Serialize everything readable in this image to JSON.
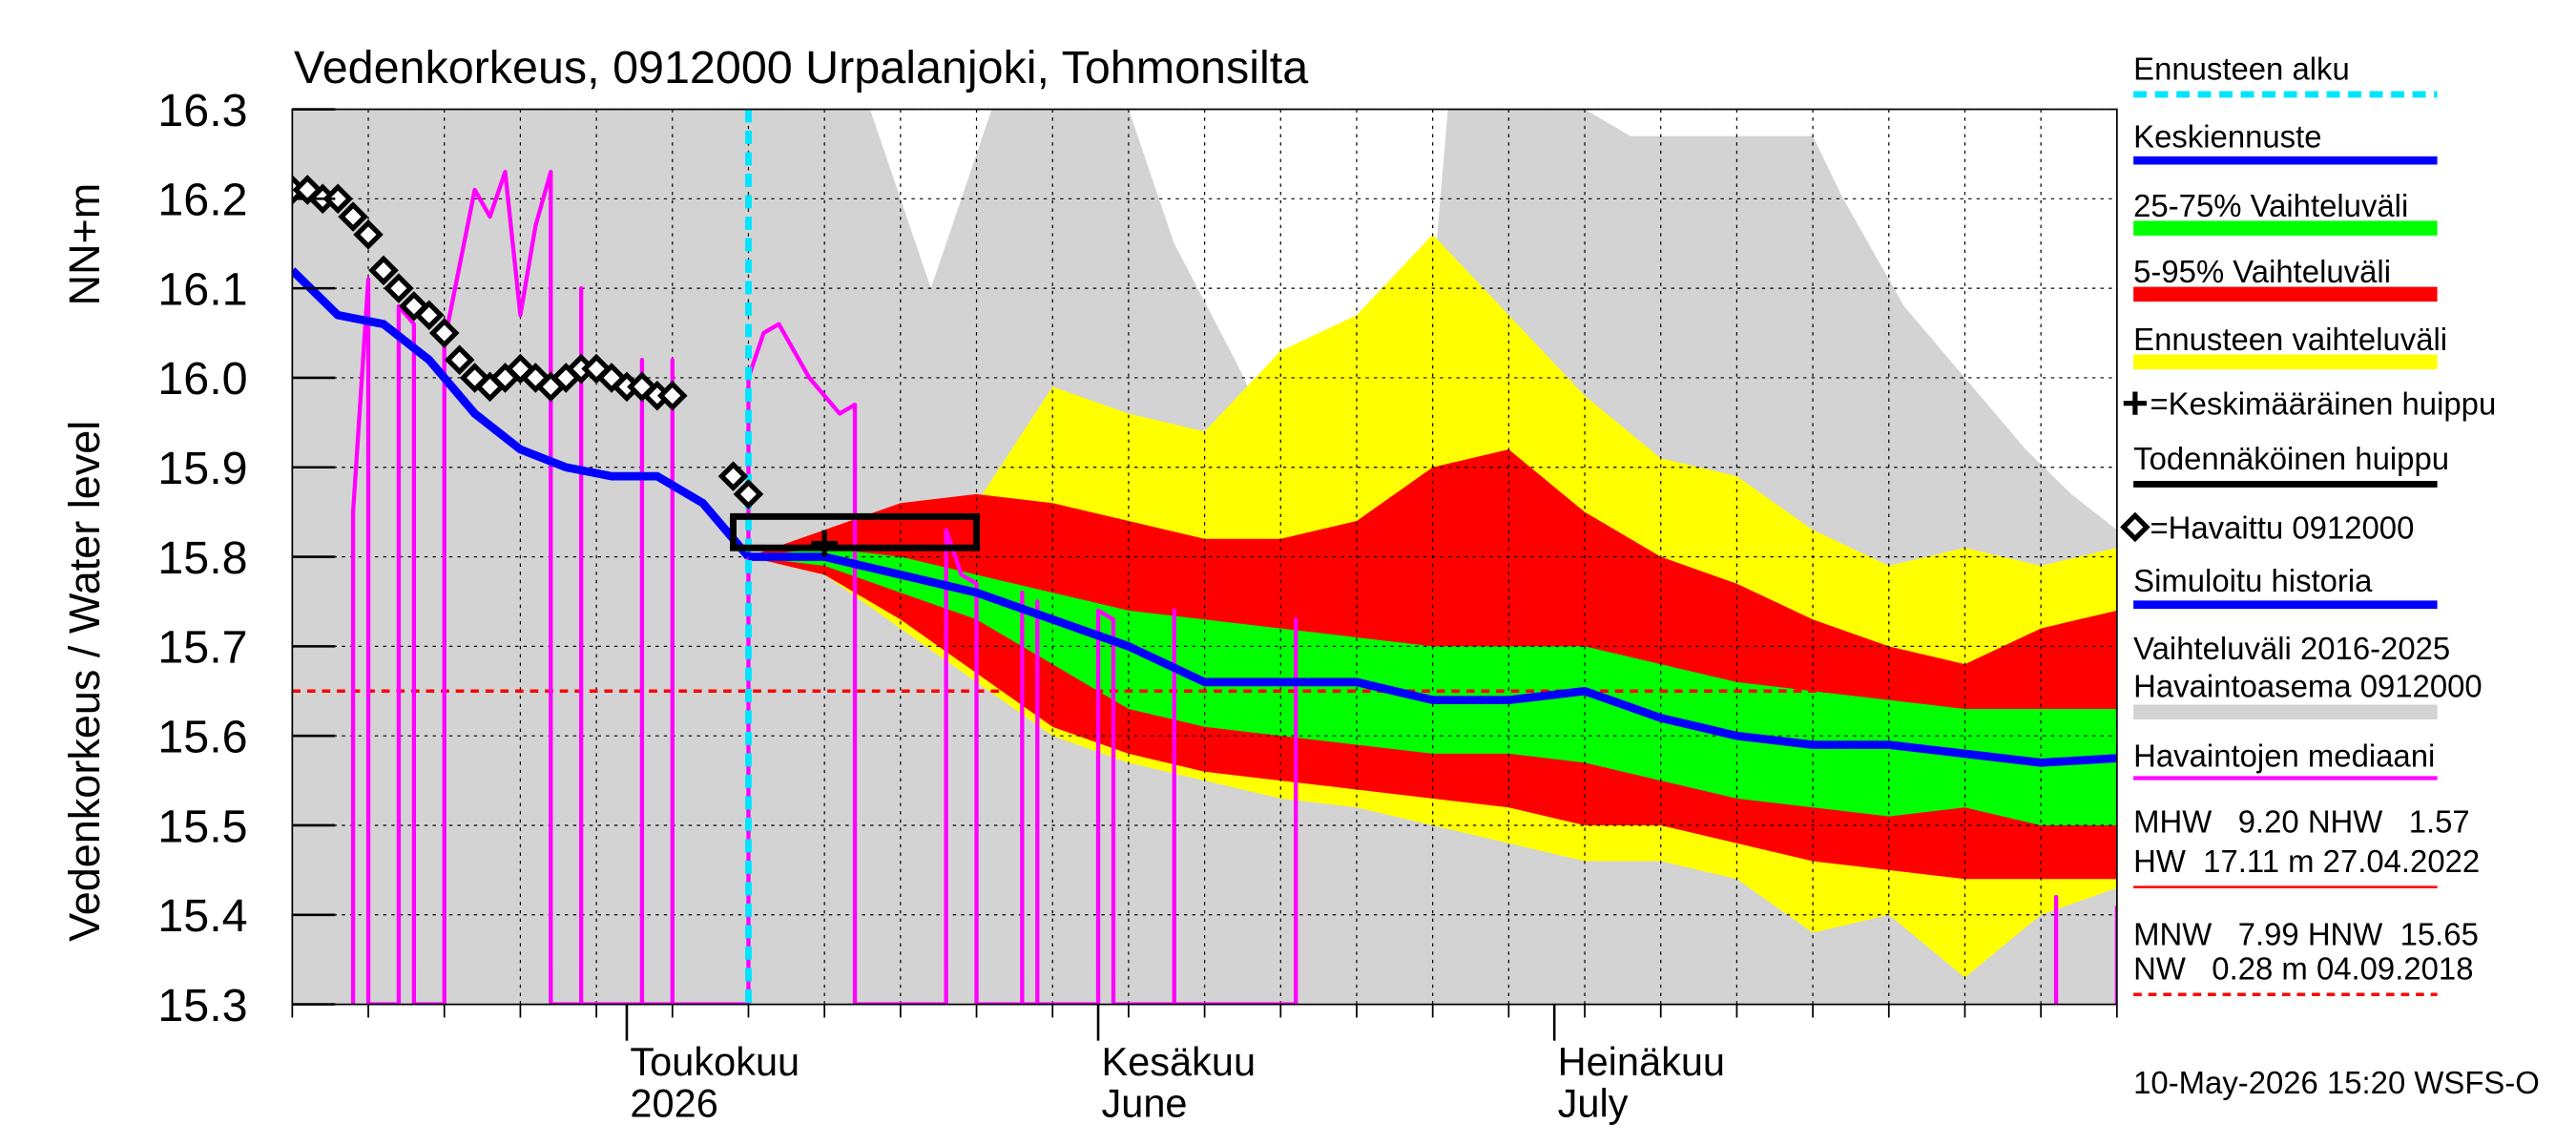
{
  "chart_data": {
    "type": "forecast",
    "title": "Vedenkorkeus, 0912000 Urpalanjoki, Tohmonsilta",
    "y_label": "Vedenkorkeus / Water level",
    "y_unit": "NN+m",
    "xlim": [
      "2026-04-09",
      "2026-08-07"
    ],
    "ylim": [
      15.3,
      16.3
    ],
    "yticks": [
      15.3,
      15.4,
      15.5,
      15.6,
      15.7,
      15.8,
      15.9,
      {
        "value": 16,
        "label": "16.0"
      },
      16.1,
      16.2,
      16.3
    ],
    "xticks": [
      {
        "value": "2026-05-01",
        "label": "Toukokuu",
        "label2": "2026"
      },
      {
        "value": "2026-06-01",
        "label": "Kesäkuu",
        "label2": "June"
      },
      {
        "value": "2026-07-01",
        "label": "Heinäkuu",
        "label2": "July"
      }
    ],
    "minor_xticks": [
      "2026-04-09",
      "2026-04-14",
      "2026-04-19",
      "2026-04-24",
      "2026-04-29",
      "2026-05-04",
      "2026-05-09",
      "2026-05-14",
      "2026-05-19",
      "2026-05-24",
      "2026-05-29",
      "2026-06-03",
      "2026-06-08",
      "2026-06-13",
      "2026-06-18",
      "2026-06-23",
      "2026-06-28",
      "2026-07-03",
      "2026-07-08",
      "2026-07-13",
      "2026-07-18",
      "2026-07-23",
      "2026-07-28",
      "2026-08-02",
      "2026-08-07"
    ],
    "grid": true,
    "forecast_start": {
      "name": "Ennusteen alku",
      "x": "2026-05-09",
      "color": "#00e5ff"
    },
    "bands": [
      {
        "name": "Vaihteluväli 2016-2025",
        "name2": "Havaintoasema 0912000",
        "color": "#d3d3d3",
        "x": [
          "2026-04-09",
          "2026-05-17",
          "2026-05-21",
          "2026-05-25",
          "2026-06-03",
          "2026-06-06",
          "2026-06-10",
          "2026-06-14",
          "2026-06-17",
          "2026-06-19",
          "2026-06-21",
          "2026-06-23",
          "2026-06-24",
          "2026-07-03",
          "2026-07-06",
          "2026-07-18",
          "2026-07-20",
          "2026-07-24",
          "2026-07-28",
          "2026-08-01",
          "2026-08-04",
          "2026-08-07"
        ],
        "low": [
          15.3,
          15.3,
          15.3,
          15.3,
          15.3,
          15.3,
          15.3,
          15.3,
          15.3,
          15.3,
          15.3,
          15.3,
          15.3,
          15.3,
          15.3,
          15.3,
          15.3,
          15.3,
          15.3,
          15.3,
          15.3,
          15.3
        ],
        "high": [
          16.3,
          16.3,
          16.1,
          16.3,
          16.3,
          16.15,
          16.02,
          15.88,
          15.81,
          15.8,
          15.88,
          16.1,
          16.3,
          16.3,
          16.27,
          16.27,
          16.2,
          16.08,
          16.0,
          15.92,
          15.87,
          15.83
        ]
      },
      {
        "name": "Ennusteen vaihteluväli",
        "color": "#ffff00",
        "x": [
          "2026-05-09",
          "2026-05-14",
          "2026-05-19",
          "2026-05-24",
          "2026-05-29",
          "2026-06-03",
          "2026-06-08",
          "2026-06-13",
          "2026-06-18",
          "2026-06-23",
          "2026-06-28",
          "2026-07-03",
          "2026-07-08",
          "2026-07-13",
          "2026-07-18",
          "2026-07-23",
          "2026-07-28",
          "2026-08-02",
          "2026-08-07"
        ],
        "low": [
          15.8,
          15.78,
          15.72,
          15.66,
          15.6,
          15.57,
          15.55,
          15.53,
          15.52,
          15.5,
          15.48,
          15.46,
          15.46,
          15.44,
          15.38,
          15.4,
          15.33,
          15.4,
          15.43
        ],
        "high": [
          15.8,
          15.82,
          15.83,
          15.86,
          15.99,
          15.96,
          15.94,
          16.03,
          16.07,
          16.16,
          16.07,
          15.98,
          15.91,
          15.89,
          15.83,
          15.79,
          15.81,
          15.79,
          15.81
        ]
      },
      {
        "name": "5-95% Vaihteluväli",
        "color": "#ff0000",
        "x": [
          "2026-05-09",
          "2026-05-14",
          "2026-05-19",
          "2026-05-24",
          "2026-05-29",
          "2026-06-03",
          "2026-06-08",
          "2026-06-13",
          "2026-06-18",
          "2026-06-23",
          "2026-06-28",
          "2026-07-03",
          "2026-07-08",
          "2026-07-13",
          "2026-07-18",
          "2026-07-23",
          "2026-07-28",
          "2026-08-02",
          "2026-08-07"
        ],
        "low": [
          15.8,
          15.78,
          15.73,
          15.67,
          15.61,
          15.58,
          15.56,
          15.55,
          15.54,
          15.53,
          15.52,
          15.5,
          15.5,
          15.48,
          15.46,
          15.45,
          15.44,
          15.44,
          15.44
        ],
        "high": [
          15.8,
          15.83,
          15.86,
          15.87,
          15.86,
          15.84,
          15.82,
          15.82,
          15.84,
          15.9,
          15.92,
          15.85,
          15.8,
          15.77,
          15.73,
          15.7,
          15.68,
          15.72,
          15.74
        ]
      },
      {
        "name": "25-75% Vaihteluväli",
        "color": "#00ff00",
        "x": [
          "2026-05-09",
          "2026-05-14",
          "2026-05-19",
          "2026-05-24",
          "2026-05-29",
          "2026-06-03",
          "2026-06-08",
          "2026-06-13",
          "2026-06-18",
          "2026-06-23",
          "2026-06-28",
          "2026-07-03",
          "2026-07-08",
          "2026-07-13",
          "2026-07-18",
          "2026-07-23",
          "2026-07-28",
          "2026-08-02",
          "2026-08-07"
        ],
        "low": [
          15.8,
          15.79,
          15.76,
          15.73,
          15.68,
          15.63,
          15.61,
          15.6,
          15.59,
          15.58,
          15.58,
          15.57,
          15.55,
          15.53,
          15.52,
          15.51,
          15.52,
          15.5,
          15.5
        ],
        "high": [
          15.8,
          15.81,
          15.8,
          15.78,
          15.76,
          15.74,
          15.73,
          15.72,
          15.71,
          15.7,
          15.7,
          15.7,
          15.68,
          15.66,
          15.65,
          15.64,
          15.63,
          15.63,
          15.63
        ]
      }
    ],
    "series": [
      {
        "name": "Havaintojen mediaani",
        "color": "#ff00ff",
        "width": 2.5,
        "x": [
          "2026-04-13",
          "2026-04-13",
          "2026-04-14",
          "2026-04-14",
          "2026-04-16",
          "2026-04-16",
          "2026-04-17",
          "2026-04-17",
          "2026-04-19",
          "2026-04-19",
          "2026-04-21",
          "2026-04-22",
          "2026-04-23",
          "2026-04-24",
          "2026-04-25",
          "2026-04-26",
          "2026-04-26",
          "2026-04-28",
          "2026-04-28",
          "2026-04-28",
          "2026-05-02",
          "2026-05-02",
          "2026-05-02",
          "2026-05-04",
          "2026-05-04",
          "2026-05-04",
          "2026-05-09",
          "2026-05-09",
          "2026-05-10",
          "2026-05-11",
          "2026-05-13",
          "2026-05-15",
          "2026-05-16",
          "2026-05-16",
          "2026-05-22",
          "2026-05-22",
          "2026-05-23",
          "2026-05-24",
          "2026-05-24",
          "2026-05-27",
          "2026-05-27",
          "2026-05-27",
          "2026-05-28",
          "2026-05-28",
          "2026-05-28",
          "2026-06-01",
          "2026-06-01",
          "2026-06-02",
          "2026-06-02",
          "2026-06-06",
          "2026-06-06",
          "2026-06-06",
          "2026-06-14",
          "2026-06-14",
          "2026-06-14",
          "2026-07-01",
          "2026-08-03",
          "2026-08-03",
          "2026-08-03",
          "2026-08-05",
          "2026-08-07",
          "2026-08-07"
        ],
        "values": [
          15.3,
          15.85,
          16.11,
          15.3,
          15.3,
          16.08,
          16.06,
          15.3,
          15.3,
          16.04,
          16.21,
          16.18,
          16.23,
          16.07,
          16.17,
          16.23,
          15.3,
          15.3,
          16.1,
          15.3,
          15.3,
          16.02,
          15.3,
          15.3,
          16.02,
          15.3,
          15.3,
          16.0,
          16.05,
          16.06,
          16.0,
          15.96,
          15.97,
          15.3,
          15.3,
          15.83,
          15.78,
          15.77,
          15.3,
          15.3,
          15.76,
          15.3,
          15.3,
          15.75,
          15.3,
          15.3,
          15.74,
          15.73,
          15.3,
          15.3,
          15.74,
          15.3,
          15.3,
          15.73,
          15.3,
          null,
          15.3,
          15.42,
          15.3,
          null,
          15.3,
          15.41
        ]
      },
      {
        "name": "Simuloitu historia",
        "color": "#0000ff",
        "width": 5,
        "x": [
          "2026-04-09",
          "2026-04-12",
          "2026-04-15",
          "2026-04-18",
          "2026-04-21",
          "2026-04-24",
          "2026-04-27",
          "2026-04-30",
          "2026-05-03",
          "2026-05-06",
          "2026-05-09"
        ],
        "values": [
          16.12,
          16.07,
          16.06,
          16.02,
          15.96,
          15.92,
          15.9,
          15.89,
          15.89,
          15.86,
          15.8
        ]
      },
      {
        "name": "Keskiennuste",
        "color": "#0000ff",
        "width": 5,
        "x": [
          "2026-05-09",
          "2026-05-14",
          "2026-05-19",
          "2026-05-24",
          "2026-05-29",
          "2026-06-03",
          "2026-06-08",
          "2026-06-13",
          "2026-06-18",
          "2026-06-23",
          "2026-06-28",
          "2026-07-03",
          "2026-07-08",
          "2026-07-13",
          "2026-07-18",
          "2026-07-23",
          "2026-07-28",
          "2026-08-02",
          "2026-08-07"
        ],
        "values": [
          15.8,
          15.8,
          15.78,
          15.76,
          15.73,
          15.7,
          15.66,
          15.66,
          15.66,
          15.64,
          15.64,
          15.65,
          15.62,
          15.6,
          15.59,
          15.59,
          15.58,
          15.57,
          15.575
        ]
      }
    ],
    "observed": {
      "name": "=Havaittu 0912000",
      "color": "#000000",
      "x": [
        "2026-04-09",
        "2026-04-10",
        "2026-04-11",
        "2026-04-12",
        "2026-04-13",
        "2026-04-14",
        "2026-04-15",
        "2026-04-16",
        "2026-04-17",
        "2026-04-18",
        "2026-04-19",
        "2026-04-20",
        "2026-04-21",
        "2026-04-22",
        "2026-04-23",
        "2026-04-24",
        "2026-04-25",
        "2026-04-26",
        "2026-04-27",
        "2026-04-28",
        "2026-04-29",
        "2026-04-30",
        "2026-05-01",
        "2026-05-02",
        "2026-05-03",
        "2026-05-04",
        "2026-05-08",
        "2026-05-09"
      ],
      "values": [
        16.21,
        16.21,
        16.2,
        16.2,
        16.18,
        16.16,
        16.12,
        16.1,
        16.08,
        16.07,
        16.05,
        16.02,
        16.0,
        15.99,
        16.0,
        16.01,
        16.0,
        15.99,
        16.0,
        16.01,
        16.01,
        16.0,
        15.99,
        15.99,
        15.98,
        15.98,
        15.89,
        15.87
      ]
    },
    "peak_box": {
      "name": "Todennäköinen huippu",
      "x": [
        "2026-05-08",
        "2026-05-24"
      ],
      "values": [
        15.81,
        15.845
      ],
      "color": "#000000"
    },
    "mean_peak": {
      "name": "=Keskimääräinen huippu",
      "x": "2026-05-14",
      "value": 15.815,
      "color": "#000000"
    },
    "reference_line": {
      "value": 15.65,
      "color": "#ff0000"
    },
    "stats": [
      "MHW   9.20 NHW   1.57",
      "HW  17.11 m 27.04.2022",
      "MNW   7.99 HNW  15.65",
      "NW   0.28 m 04.09.2018"
    ],
    "footer": "10-May-2026 15:20 WSFS-O"
  }
}
